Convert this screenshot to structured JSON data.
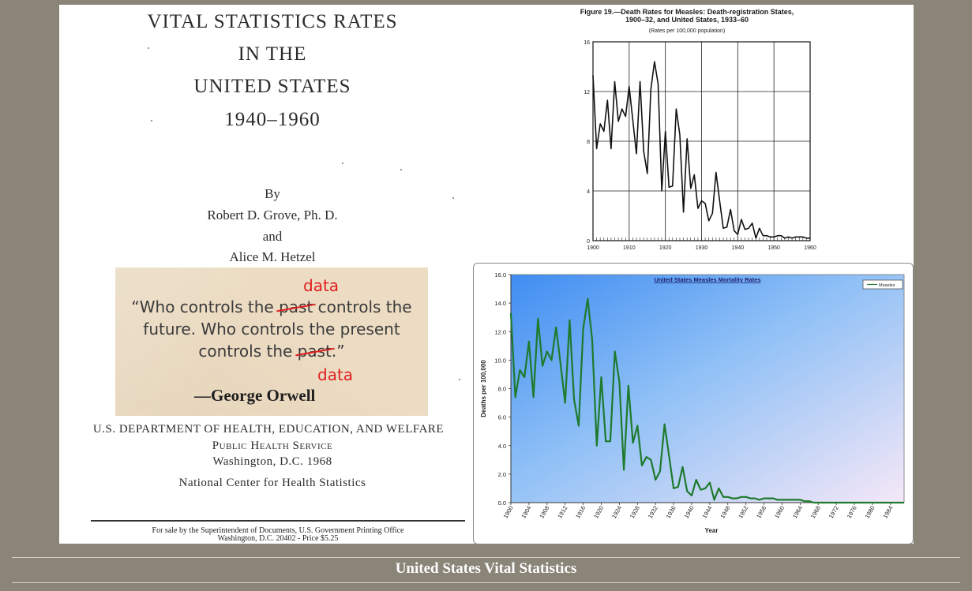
{
  "cover": {
    "title_line1": "VITAL STATISTICS RATES",
    "title_line2": "IN THE",
    "title_line3": "UNITED STATES",
    "years": "1940–1960",
    "by": "By",
    "author1": "Robert D. Grove, Ph. D.",
    "and": "and",
    "author2": "Alice M. Hetzel",
    "department": "U.S. DEPARTMENT OF HEALTH, EDUCATION, AND WELFARE",
    "service": "Public Health Service",
    "location": "Washington, D.C. 1968",
    "center": "National Center for Health Statistics",
    "sale_line1": "For sale by the Superintendent of Documents, U.S. Government Printing Office",
    "sale_line2": "Washington, D.C. 20402 - Price $5.25"
  },
  "quote": {
    "line1_pre": "“Who controls the ",
    "line1_struck": "past",
    "line1_post": " controls the",
    "line2": "future. Who controls the present",
    "line3_pre": "controls the ",
    "line3_struck": "past",
    "line3_post": ".”",
    "replacement_top": "data",
    "replacement_bottom": "data",
    "attribution": "—George Orwell",
    "strike_color": "#e02020"
  },
  "chart_data": [
    {
      "type": "line",
      "title": "Figure 19.—Death Rates for Measles: Death-registration States, 1900–32, and United States, 1933–60",
      "title_line1": "Figure 19.—Death Rates for Measles:  Death-registration States,",
      "title_line2": "1900–32, and United States, 1933–60",
      "subtitle": "(Rates per 100,000 population)",
      "xlabel": "",
      "ylabel": "",
      "xlim": [
        1900,
        1960
      ],
      "ylim": [
        0,
        16
      ],
      "x_ticks": [
        "1900",
        "1910",
        "1920",
        "1930",
        "1940",
        "1950",
        "1960"
      ],
      "y_ticks": [
        "0",
        "4",
        "8",
        "12",
        "16"
      ],
      "grid": true,
      "x": [
        1900,
        1901,
        1902,
        1903,
        1904,
        1905,
        1906,
        1907,
        1908,
        1909,
        1910,
        1911,
        1912,
        1913,
        1914,
        1915,
        1916,
        1917,
        1918,
        1919,
        1920,
        1921,
        1922,
        1923,
        1924,
        1925,
        1926,
        1927,
        1928,
        1929,
        1930,
        1931,
        1932,
        1933,
        1934,
        1935,
        1936,
        1937,
        1938,
        1939,
        1940,
        1941,
        1942,
        1943,
        1944,
        1945,
        1946,
        1947,
        1948,
        1949,
        1950,
        1951,
        1952,
        1953,
        1954,
        1955,
        1956,
        1957,
        1958,
        1959,
        1960
      ],
      "series": [
        {
          "name": "Measles",
          "values": [
            13.3,
            7.4,
            9.4,
            8.8,
            11.3,
            7.4,
            12.8,
            9.6,
            10.6,
            10.0,
            12.4,
            9.7,
            7.0,
            12.8,
            7.2,
            5.4,
            12.2,
            14.4,
            12.6,
            4.0,
            8.8,
            4.3,
            4.4,
            10.6,
            8.5,
            2.3,
            8.2,
            4.2,
            5.3,
            2.6,
            3.2,
            3.0,
            1.6,
            2.2,
            5.5,
            3.2,
            1.0,
            1.1,
            2.5,
            0.8,
            0.5,
            1.7,
            0.9,
            1.0,
            1.4,
            0.2,
            1.0,
            0.4,
            0.4,
            0.3,
            0.3,
            0.4,
            0.4,
            0.2,
            0.3,
            0.2,
            0.3,
            0.3,
            0.3,
            0.2,
            0.2
          ]
        }
      ]
    },
    {
      "type": "line",
      "title": "United States Measles Mortality Rates",
      "xlabel": "Year",
      "ylabel": "Deaths per 100,000",
      "xlim": [
        1900,
        1987
      ],
      "ylim": [
        0,
        16
      ],
      "y_ticks": [
        "0.0",
        "2.0",
        "4.0",
        "6.0",
        "8.0",
        "10.0",
        "12.0",
        "14.0",
        "16.0"
      ],
      "x_ticks": [
        "1900",
        "1904",
        "1908",
        "1912",
        "1916",
        "1920",
        "1924",
        "1928",
        "1932",
        "1936",
        "1940",
        "1944",
        "1948",
        "1952",
        "1956",
        "1960",
        "1964",
        "1968",
        "1972",
        "1976",
        "1980",
        "1984"
      ],
      "legend": [
        "Measles"
      ],
      "legend_position": "top-right",
      "grid": false,
      "x": [
        1900,
        1901,
        1902,
        1903,
        1904,
        1905,
        1906,
        1907,
        1908,
        1909,
        1910,
        1911,
        1912,
        1913,
        1914,
        1915,
        1916,
        1917,
        1918,
        1919,
        1920,
        1921,
        1922,
        1923,
        1924,
        1925,
        1926,
        1927,
        1928,
        1929,
        1930,
        1931,
        1932,
        1933,
        1934,
        1935,
        1936,
        1937,
        1938,
        1939,
        1940,
        1941,
        1942,
        1943,
        1944,
        1945,
        1946,
        1947,
        1948,
        1949,
        1950,
        1951,
        1952,
        1953,
        1954,
        1955,
        1956,
        1957,
        1958,
        1959,
        1960,
        1961,
        1962,
        1963,
        1964,
        1965,
        1966,
        1967,
        1968,
        1969,
        1970,
        1971,
        1972,
        1973,
        1974,
        1975,
        1976,
        1977,
        1978,
        1979,
        1980,
        1981,
        1982,
        1983,
        1984,
        1985,
        1986,
        1987
      ],
      "series": [
        {
          "name": "Measles",
          "values": [
            13.3,
            7.4,
            9.3,
            8.8,
            11.3,
            7.4,
            12.9,
            9.6,
            10.6,
            10.0,
            12.3,
            9.7,
            7.0,
            12.8,
            7.2,
            5.4,
            12.2,
            14.3,
            11.4,
            4.0,
            8.8,
            4.3,
            4.3,
            10.6,
            8.5,
            2.3,
            8.2,
            4.2,
            5.4,
            2.6,
            3.2,
            3.0,
            1.6,
            2.2,
            5.5,
            3.3,
            1.0,
            1.1,
            2.5,
            0.8,
            0.5,
            1.6,
            0.9,
            1.0,
            1.4,
            0.2,
            1.0,
            0.4,
            0.4,
            0.3,
            0.3,
            0.4,
            0.4,
            0.3,
            0.3,
            0.2,
            0.3,
            0.3,
            0.3,
            0.2,
            0.2,
            0.2,
            0.2,
            0.2,
            0.2,
            0.1,
            0.1,
            0.0,
            0.0,
            0.0,
            0.0,
            0.0,
            0.0,
            0.0,
            0.0,
            0.0,
            0.0,
            0.0,
            0.0,
            0.0,
            0.0,
            0.0,
            0.0,
            0.0,
            0.0,
            0.0,
            0.0,
            0.0
          ]
        }
      ],
      "line_color": "#1e7a2c"
    }
  ],
  "footer": {
    "title": "United States Vital Statistics"
  }
}
